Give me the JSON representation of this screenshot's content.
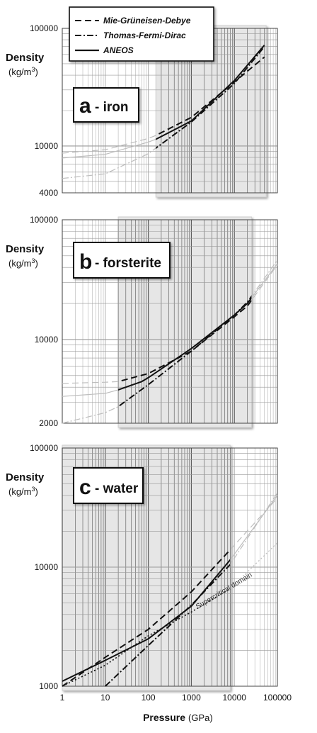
{
  "legend": {
    "items": [
      {
        "label": "Mie-Grüneisen-Debye",
        "style": "dashed"
      },
      {
        "label": "Thomas-Fermi-Dirac",
        "style": "dashdot"
      },
      {
        "label": "ANEOS",
        "style": "solid"
      }
    ]
  },
  "x_axis": {
    "label": "Pressure",
    "unit": "(GPa)",
    "scale": "log",
    "range": [
      1,
      100000
    ],
    "ticks": [
      "1",
      "10",
      "100",
      "1000",
      "10000",
      "100000"
    ]
  },
  "colors": {
    "highlight": "#e6e6e6",
    "grid": "#9a9a9a",
    "curve": "#111111",
    "faded_curve": "#bdbdbd"
  },
  "chart_data": [
    {
      "type": "line",
      "panel_letter": "a",
      "panel_name": "- iron",
      "ylabel": "Density",
      "yunit": "(kg/m",
      "yunit_sup": "3",
      "yunit_close": ")",
      "y_scale": "log",
      "ylim": [
        4000,
        100000
      ],
      "yticks": [
        "4000",
        "10000",
        "100000"
      ],
      "highlight_range": [
        150,
        55000
      ],
      "series": [
        {
          "name": "Mie-Grüneisen-Debye",
          "style": "dashed",
          "x": [
            1,
            10,
            100,
            150,
            1000,
            10000,
            50000
          ],
          "y": [
            8700,
            9300,
            11600,
            12300,
            17500,
            35000,
            57000
          ]
        },
        {
          "name": "Thomas-Fermi-Dirac",
          "style": "dashdot",
          "x": [
            1,
            10,
            100,
            150,
            1000,
            10000,
            50000
          ],
          "y": [
            5300,
            5800,
            8600,
            9600,
            16000,
            34000,
            70000
          ]
        },
        {
          "name": "ANEOS",
          "style": "solid",
          "x": [
            1,
            10,
            100,
            150,
            1000,
            10000,
            50000
          ],
          "y": [
            7900,
            8500,
            10800,
            11400,
            16300,
            36000,
            72000
          ]
        }
      ]
    },
    {
      "type": "line",
      "panel_letter": "b",
      "panel_name": "- forsterite",
      "ylabel": "Density",
      "yunit": "(kg/m",
      "yunit_sup": "3",
      "yunit_close": ")",
      "y_scale": "log",
      "ylim": [
        2000,
        100000
      ],
      "yticks": [
        "2000",
        "10000",
        "100000"
      ],
      "highlight_range": [
        20,
        25000
      ],
      "series": [
        {
          "name": "Mie-Grüneisen-Debye",
          "style": "dashed",
          "x": [
            1,
            10,
            20,
            100,
            1000,
            10000,
            20000,
            100000
          ],
          "y": [
            4300,
            4400,
            4450,
            5200,
            8000,
            15500,
            19000,
            42000
          ]
        },
        {
          "name": "Thomas-Fermi-Dirac",
          "style": "dashdot",
          "x": [
            1,
            10,
            20,
            100,
            1000,
            10000,
            20000,
            100000
          ],
          "y": [
            2000,
            2450,
            2750,
            4200,
            8000,
            16000,
            20500,
            46000
          ]
        },
        {
          "name": "ANEOS",
          "style": "solid",
          "x": [
            1,
            10,
            20,
            70,
            100,
            1000,
            10000,
            20000,
            100000
          ],
          "y": [
            3350,
            3550,
            3800,
            4450,
            4800,
            8400,
            16000,
            20000,
            43000
          ]
        }
      ]
    },
    {
      "type": "line",
      "panel_letter": "c",
      "panel_name": "- water",
      "ylabel": "Density",
      "yunit": "(kg/m",
      "yunit_sup": "3",
      "yunit_close": ")",
      "y_scale": "log",
      "ylim": [
        1000,
        100000
      ],
      "yticks": [
        "1000",
        "10000",
        "100000"
      ],
      "highlight_range": [
        1,
        8000
      ],
      "annotation": "Supercritical domain",
      "series": [
        {
          "name": "Mie-Grüneisen-Debye",
          "style": "dashed",
          "x": [
            1,
            10,
            100,
            1000,
            8000,
            100000
          ],
          "y": [
            1000,
            1750,
            3000,
            6200,
            14000,
            38000
          ]
        },
        {
          "name": "Thomas-Fermi-Dirac",
          "style": "dashdot",
          "x": [
            10,
            100,
            1000,
            8000,
            100000
          ],
          "y": [
            1000,
            2200,
            4800,
            10500,
            42000
          ]
        },
        {
          "name": "ANEOS",
          "style": "solid",
          "x": [
            1,
            10,
            100,
            1000,
            8000,
            100000
          ],
          "y": [
            1100,
            1650,
            2500,
            4700,
            11500,
            40000
          ]
        },
        {
          "name": "Supercritical domain",
          "style": "dotted",
          "x": [
            1,
            10,
            100,
            1000,
            8000,
            100000
          ],
          "y": [
            1000,
            1500,
            2650,
            4200,
            6600,
            16000
          ]
        }
      ]
    }
  ]
}
